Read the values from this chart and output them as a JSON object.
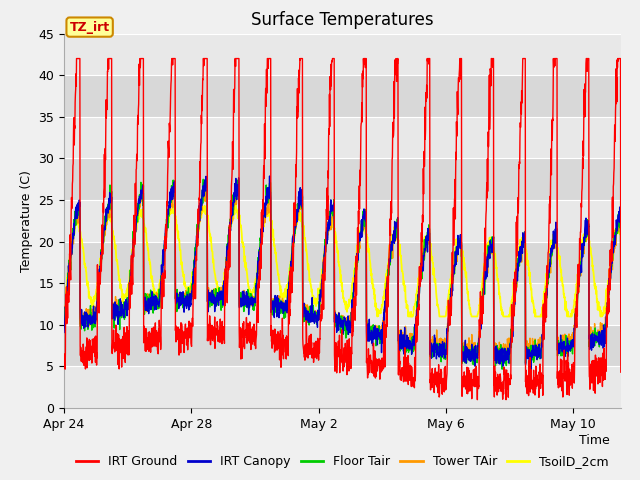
{
  "title": "Surface Temperatures",
  "ylabel": "Temperature (C)",
  "xlabel": "Time",
  "xlim_days": [
    0,
    17.5
  ],
  "ylim": [
    0,
    45
  ],
  "yticks": [
    0,
    5,
    10,
    15,
    20,
    25,
    30,
    35,
    40,
    45
  ],
  "xtick_labels": [
    "Apr 24",
    "Apr 28",
    "May 2",
    "May 6",
    "May 10"
  ],
  "xtick_positions": [
    0,
    4,
    8,
    12,
    16
  ],
  "fig_bg_color": "#f0f0f0",
  "plot_bg_color": "#e8e8e8",
  "legend_entries": [
    "IRT Ground",
    "IRT Canopy",
    "Floor Tair",
    "Tower TAir",
    "TsoilD_2cm"
  ],
  "legend_colors": [
    "#ff0000",
    "#0000cc",
    "#00cc00",
    "#ff9900",
    "#ffff00"
  ],
  "band_colors": [
    "#e8e8e8",
    "#d8d8d8"
  ],
  "annotation_text": "TZ_irt",
  "annotation_bg": "#ffff99",
  "annotation_border": "#cc8800",
  "annotation_text_color": "#cc0000",
  "grid_color": "#ffffff",
  "seed": 42,
  "n_points": 2000,
  "title_fontsize": 12,
  "axis_fontsize": 9,
  "tick_fontsize": 9,
  "legend_fontsize": 9
}
